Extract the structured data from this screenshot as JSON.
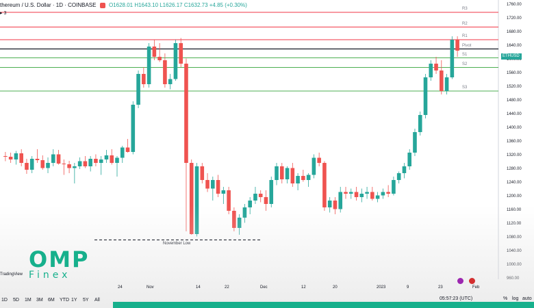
{
  "header": {
    "symbol": "thereum / U.S. Dollar · 1D · COINBASE",
    "ohlc": "O1628.01 H1643.10 L1626.17 C1632.73 +4.85 (+0.30%)",
    "indicator": "3"
  },
  "price_axis": {
    "labels": [
      "1760.00",
      "1720.00",
      "1680.00",
      "1640.00",
      "1600.00",
      "1560.00",
      "1520.00",
      "1480.00",
      "1440.00",
      "1400.00",
      "1360.00",
      "1320.00",
      "1280.00",
      "1240.00",
      "1200.00",
      "1160.00",
      "1120.00",
      "1080.00",
      "1040.00",
      "1000.00",
      "960.00"
    ],
    "top_label": "1760",
    "current_tag": "ETHUSD  16:02"
  },
  "levels": [
    {
      "name": "R3",
      "value": 1740,
      "color": "#f23645"
    },
    {
      "name": "R2",
      "value": 1697,
      "color": "#f23645"
    },
    {
      "name": "R1",
      "value": 1660,
      "color": "#f23645"
    },
    {
      "name": "Pivot",
      "value": 1633,
      "color": "#131722"
    },
    {
      "name": "S1",
      "value": 1607,
      "color": "#4caf50"
    },
    {
      "name": "S2",
      "value": 1579,
      "color": "#4caf50"
    },
    {
      "name": "S3",
      "value": 1510,
      "color": "#4caf50"
    }
  ],
  "annotation": {
    "text": "November Low",
    "value": 1075
  },
  "date_axis": [
    "24",
    "Nov",
    "14",
    "22",
    "Dec",
    "12",
    "20",
    "2023",
    "9",
    "23",
    "Feb"
  ],
  "range_buttons": [
    "1D",
    "5D",
    "1M",
    "3M",
    "6M",
    "YTD",
    "1Y",
    "5Y",
    "All"
  ],
  "status": {
    "time": "05:57:23 (UTC)",
    "pct": "%",
    "log": "log",
    "auto": "auto"
  },
  "watermark": {
    "logo_big": "OMP",
    "logo_small": "Finex",
    "brand": "TradingView"
  },
  "chart_data": {
    "type": "candlestick",
    "ylim": [
      960,
      1760
    ],
    "candles": [
      [
        1320,
        1332,
        1305,
        1318
      ],
      [
        1318,
        1330,
        1300,
        1310
      ],
      [
        1310,
        1335,
        1295,
        1328
      ],
      [
        1328,
        1340,
        1290,
        1300
      ],
      [
        1300,
        1312,
        1268,
        1280
      ],
      [
        1280,
        1320,
        1270,
        1312
      ],
      [
        1312,
        1340,
        1300,
        1308
      ],
      [
        1308,
        1322,
        1280,
        1285
      ],
      [
        1285,
        1316,
        1270,
        1300
      ],
      [
        1300,
        1340,
        1290,
        1325
      ],
      [
        1325,
        1338,
        1295,
        1298
      ],
      [
        1298,
        1310,
        1265,
        1296
      ],
      [
        1296,
        1306,
        1270,
        1285
      ],
      [
        1285,
        1300,
        1240,
        1290
      ],
      [
        1290,
        1316,
        1282,
        1305
      ],
      [
        1305,
        1320,
        1285,
        1290
      ],
      [
        1290,
        1320,
        1275,
        1312
      ],
      [
        1312,
        1325,
        1290,
        1300
      ],
      [
        1300,
        1320,
        1265,
        1310
      ],
      [
        1310,
        1338,
        1300,
        1322
      ],
      [
        1322,
        1340,
        1295,
        1300
      ],
      [
        1300,
        1320,
        1260,
        1315
      ],
      [
        1315,
        1350,
        1300,
        1345
      ],
      [
        1345,
        1370,
        1330,
        1332
      ],
      [
        1332,
        1480,
        1325,
        1470
      ],
      [
        1470,
        1570,
        1460,
        1560
      ],
      [
        1560,
        1580,
        1520,
        1530
      ],
      [
        1530,
        1650,
        1520,
        1640
      ],
      [
        1640,
        1660,
        1600,
        1610
      ],
      [
        1610,
        1650,
        1595,
        1600
      ],
      [
        1600,
        1620,
        1520,
        1530
      ],
      [
        1530,
        1560,
        1515,
        1545
      ],
      [
        1545,
        1660,
        1540,
        1650
      ],
      [
        1650,
        1665,
        1580,
        1590
      ],
      [
        1590,
        1605,
        1100,
        1300
      ],
      [
        1300,
        1310,
        1090,
        1092
      ],
      [
        1092,
        1300,
        1085,
        1290
      ],
      [
        1290,
        1300,
        1240,
        1250
      ],
      [
        1250,
        1270,
        1215,
        1225
      ],
      [
        1225,
        1260,
        1190,
        1250
      ],
      [
        1250,
        1265,
        1200,
        1210
      ],
      [
        1210,
        1230,
        1180,
        1220
      ],
      [
        1220,
        1230,
        1150,
        1160
      ],
      [
        1160,
        1170,
        1100,
        1110
      ],
      [
        1110,
        1150,
        1090,
        1140
      ],
      [
        1140,
        1180,
        1125,
        1170
      ],
      [
        1170,
        1200,
        1150,
        1190
      ],
      [
        1190,
        1230,
        1180,
        1210
      ],
      [
        1210,
        1220,
        1185,
        1200
      ],
      [
        1200,
        1220,
        1160,
        1180
      ],
      [
        1180,
        1260,
        1170,
        1250
      ],
      [
        1250,
        1300,
        1235,
        1290
      ],
      [
        1290,
        1300,
        1240,
        1252
      ],
      [
        1252,
        1290,
        1240,
        1285
      ],
      [
        1285,
        1300,
        1230,
        1240
      ],
      [
        1240,
        1270,
        1220,
        1262
      ],
      [
        1262,
        1280,
        1245,
        1250
      ],
      [
        1250,
        1270,
        1230,
        1265
      ],
      [
        1265,
        1325,
        1255,
        1315
      ],
      [
        1315,
        1330,
        1290,
        1300
      ],
      [
        1300,
        1305,
        1160,
        1170
      ],
      [
        1170,
        1200,
        1155,
        1190
      ],
      [
        1190,
        1200,
        1150,
        1165
      ],
      [
        1165,
        1230,
        1155,
        1215
      ],
      [
        1215,
        1230,
        1195,
        1210
      ],
      [
        1210,
        1225,
        1195,
        1215
      ],
      [
        1215,
        1230,
        1190,
        1200
      ],
      [
        1200,
        1225,
        1185,
        1210
      ],
      [
        1210,
        1230,
        1195,
        1215
      ],
      [
        1215,
        1230,
        1190,
        1195
      ],
      [
        1195,
        1215,
        1185,
        1205
      ],
      [
        1205,
        1225,
        1195,
        1215
      ],
      [
        1215,
        1235,
        1200,
        1210
      ],
      [
        1210,
        1260,
        1205,
        1250
      ],
      [
        1250,
        1275,
        1240,
        1270
      ],
      [
        1270,
        1300,
        1255,
        1290
      ],
      [
        1290,
        1340,
        1280,
        1330
      ],
      [
        1330,
        1400,
        1320,
        1390
      ],
      [
        1390,
        1450,
        1380,
        1440
      ],
      [
        1440,
        1560,
        1430,
        1550
      ],
      [
        1550,
        1600,
        1540,
        1590
      ],
      [
        1590,
        1610,
        1560,
        1570
      ],
      [
        1570,
        1600,
        1500,
        1510
      ],
      [
        1510,
        1560,
        1500,
        1550
      ],
      [
        1550,
        1670,
        1545,
        1660
      ],
      [
        1660,
        1670,
        1610,
        1628
      ]
    ]
  }
}
